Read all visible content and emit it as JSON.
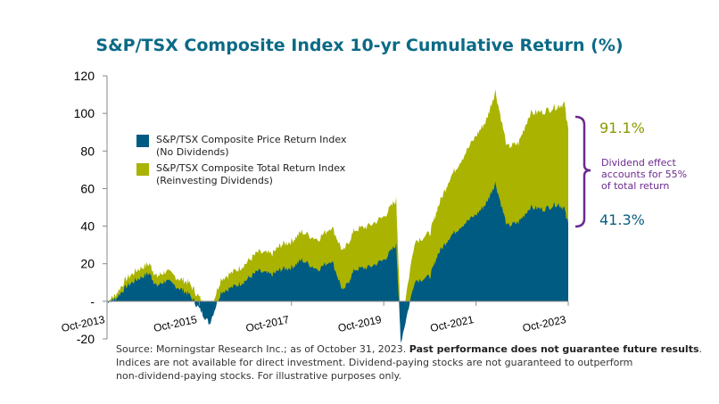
{
  "chart_data": {
    "type": "area",
    "title": "S&P/TSX Composite Index 10-yr Cumulative Return (%)",
    "xlabel": "",
    "ylabel": "",
    "ylim": [
      -20,
      120
    ],
    "yticks": [
      "120",
      "100",
      "80",
      "60",
      "40",
      "20",
      "-",
      "-20"
    ],
    "ytick_values": [
      120,
      100,
      80,
      60,
      40,
      20,
      0,
      -20
    ],
    "xticks": [
      "Oct-2013",
      "Oct-2015",
      "Oct-2017",
      "Oct-2019",
      "Oct-2021",
      "Oct-2023"
    ],
    "xtick_values": [
      2013.83,
      2015.83,
      2017.83,
      2019.83,
      2021.83,
      2023.83
    ],
    "grid": false,
    "legend_position": "top-left",
    "x": [
      2013.83,
      2014.0,
      2014.25,
      2014.5,
      2014.75,
      2014.9,
      2015.1,
      2015.4,
      2015.6,
      2015.83,
      2016.05,
      2016.3,
      2016.6,
      2016.83,
      2017.1,
      2017.4,
      2017.6,
      2017.83,
      2018.05,
      2018.4,
      2018.7,
      2018.95,
      2019.2,
      2019.5,
      2019.83,
      2020.1,
      2020.2,
      2020.5,
      2020.83,
      2021.0,
      2021.25,
      2021.5,
      2021.83,
      2022.05,
      2022.25,
      2022.5,
      2022.75,
      2023.0,
      2023.3,
      2023.6,
      2023.75,
      2023.83
    ],
    "series": [
      {
        "name": "S&P/TSX Composite Total Return Index (Reinvesting Dividends)",
        "color": "#a9b300",
        "values": [
          0,
          3,
          12,
          17,
          20,
          13,
          16,
          12,
          10,
          2,
          -6,
          12,
          16,
          20,
          26,
          25,
          30,
          32,
          37,
          33,
          40,
          26,
          38,
          40,
          45,
          54,
          -14,
          32,
          36,
          50,
          65,
          75,
          88,
          96,
          112,
          82,
          84,
          100,
          101,
          104,
          105,
          91.1
        ]
      },
      {
        "name": "S&P/TSX Composite Price Return Index (No Dividends)",
        "color": "#005b82",
        "values": [
          0,
          1,
          8,
          12,
          15,
          8,
          11,
          7,
          4,
          -4,
          -12,
          5,
          8,
          11,
          16,
          14,
          17,
          18,
          22,
          17,
          22,
          5,
          17,
          18,
          22,
          30,
          -22,
          11,
          13,
          25,
          34,
          40,
          46,
          52,
          63,
          40,
          42,
          50,
          49,
          52,
          49,
          41.3
        ]
      }
    ],
    "annotations": {
      "total_end": "91.1%",
      "price_end": "41.3%",
      "dividend_effect": "Dividend effect accounts for 55% of total return"
    }
  },
  "legend": {
    "price_line1": "S&P/TSX Composite Price Return Index",
    "price_line2": "(No Dividends)",
    "total_line1": "S&P/TSX Composite Total Return Index",
    "total_line2": "(Reinvesting Dividends)"
  },
  "colors": {
    "total": "#a9b300",
    "price": "#005b82",
    "annotation": "#6b2a8f",
    "title": "#0b6a86"
  },
  "footer": {
    "source": "Source: Morningstar Research Inc.; as of October 31, 2023. ",
    "disclaimer_bold": "Past performance does not guarantee future results",
    "period": ".",
    "line2": "Indices are not available for direct investment. Dividend-paying stocks are not guaranteed to outperform",
    "line3": "non-dividend-paying stocks. For illustrative purposes only."
  }
}
